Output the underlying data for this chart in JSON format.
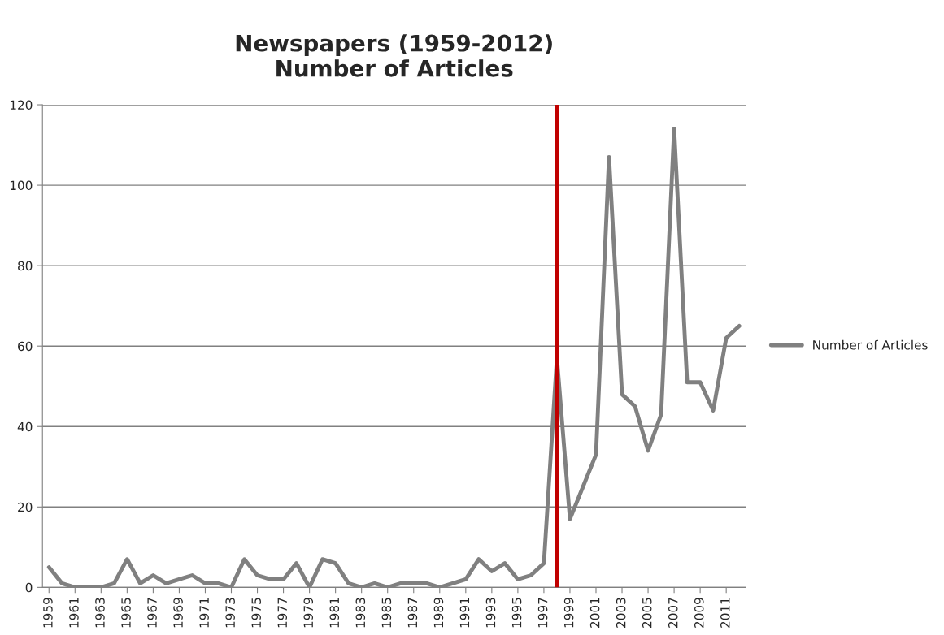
{
  "chart_data": {
    "type": "line",
    "title": "Newspapers (1959-2012)\nNumber of Articles",
    "x": [
      1959,
      1960,
      1961,
      1962,
      1963,
      1964,
      1965,
      1966,
      1967,
      1968,
      1969,
      1970,
      1971,
      1972,
      1973,
      1974,
      1975,
      1976,
      1977,
      1978,
      1979,
      1980,
      1981,
      1982,
      1983,
      1984,
      1985,
      1986,
      1987,
      1988,
      1989,
      1990,
      1991,
      1992,
      1993,
      1994,
      1995,
      1996,
      1997,
      1998,
      1999,
      2000,
      2001,
      2002,
      2003,
      2004,
      2005,
      2006,
      2007,
      2008,
      2009,
      2010,
      2011,
      2012
    ],
    "series": [
      {
        "name": "Number of Articles",
        "color": "#808080",
        "values": [
          5,
          1,
          0,
          0,
          0,
          1,
          7,
          1,
          3,
          1,
          2,
          3,
          1,
          1,
          0,
          7,
          3,
          2,
          2,
          6,
          0,
          7,
          6,
          1,
          0,
          1,
          0,
          1,
          1,
          1,
          0,
          1,
          2,
          7,
          4,
          6,
          2,
          3,
          6,
          57,
          17,
          25,
          33,
          107,
          48,
          45,
          34,
          43,
          114,
          51,
          51,
          44,
          62,
          65
        ]
      }
    ],
    "xlim": [
      1958.5,
      2012.5
    ],
    "xticks": [
      1959,
      1961,
      1963,
      1965,
      1967,
      1969,
      1971,
      1973,
      1975,
      1977,
      1979,
      1981,
      1983,
      1985,
      1987,
      1989,
      1991,
      1993,
      1995,
      1997,
      1999,
      2001,
      2003,
      2005,
      2007,
      2009,
      2011
    ],
    "ylim": [
      0,
      120
    ],
    "yticks": [
      0,
      20,
      40,
      60,
      80,
      100,
      120
    ],
    "ref_lines": [
      {
        "axis": "x",
        "value": 1998,
        "color": "#c00000",
        "line_style": "solid"
      }
    ],
    "grid": "y",
    "legend": "right",
    "marker": "none",
    "line_style": "solid"
  }
}
